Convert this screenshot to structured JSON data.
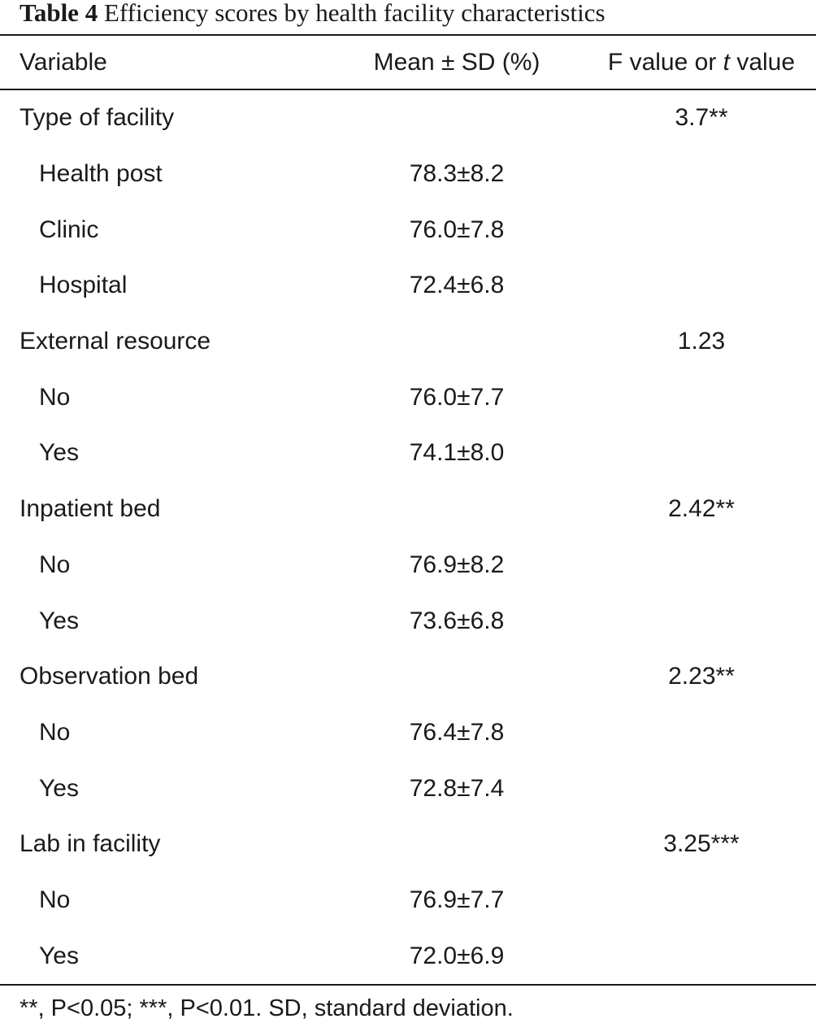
{
  "caption": {
    "label": "Table 4",
    "title": "Efficiency scores by health facility characteristics"
  },
  "header": {
    "variable": "Variable",
    "mean_sd": "Mean ± SD (%)",
    "stat_prefix": "F value or ",
    "stat_italic": "t",
    "stat_suffix": " value"
  },
  "rows": [
    {
      "label": "Type of facility",
      "mean": "",
      "stat": "3.7**",
      "sub": false
    },
    {
      "label": "Health post",
      "mean": "78.3±8.2",
      "stat": "",
      "sub": true
    },
    {
      "label": "Clinic",
      "mean": "76.0±7.8",
      "stat": "",
      "sub": true
    },
    {
      "label": "Hospital",
      "mean": "72.4±6.8",
      "stat": "",
      "sub": true
    },
    {
      "label": "External resource",
      "mean": "",
      "stat": "1.23",
      "sub": false
    },
    {
      "label": "No",
      "mean": "76.0±7.7",
      "stat": "",
      "sub": true
    },
    {
      "label": "Yes",
      "mean": "74.1±8.0",
      "stat": "",
      "sub": true
    },
    {
      "label": "Inpatient bed",
      "mean": "",
      "stat": "2.42**",
      "sub": false
    },
    {
      "label": "No",
      "mean": "76.9±8.2",
      "stat": "",
      "sub": true
    },
    {
      "label": "Yes",
      "mean": "73.6±6.8",
      "stat": "",
      "sub": true
    },
    {
      "label": "Observation bed",
      "mean": "",
      "stat": "2.23**",
      "sub": false
    },
    {
      "label": "No",
      "mean": "76.4±7.8",
      "stat": "",
      "sub": true
    },
    {
      "label": "Yes",
      "mean": "72.8±7.4",
      "stat": "",
      "sub": true
    },
    {
      "label": "Lab in facility",
      "mean": "",
      "stat": "3.25***",
      "sub": false
    },
    {
      "label": "No",
      "mean": "76.9±7.7",
      "stat": "",
      "sub": true
    },
    {
      "label": "Yes",
      "mean": "72.0±6.9",
      "stat": "",
      "sub": true
    }
  ],
  "footnote": "**, P<0.05; ***, P<0.01. SD, standard deviation."
}
